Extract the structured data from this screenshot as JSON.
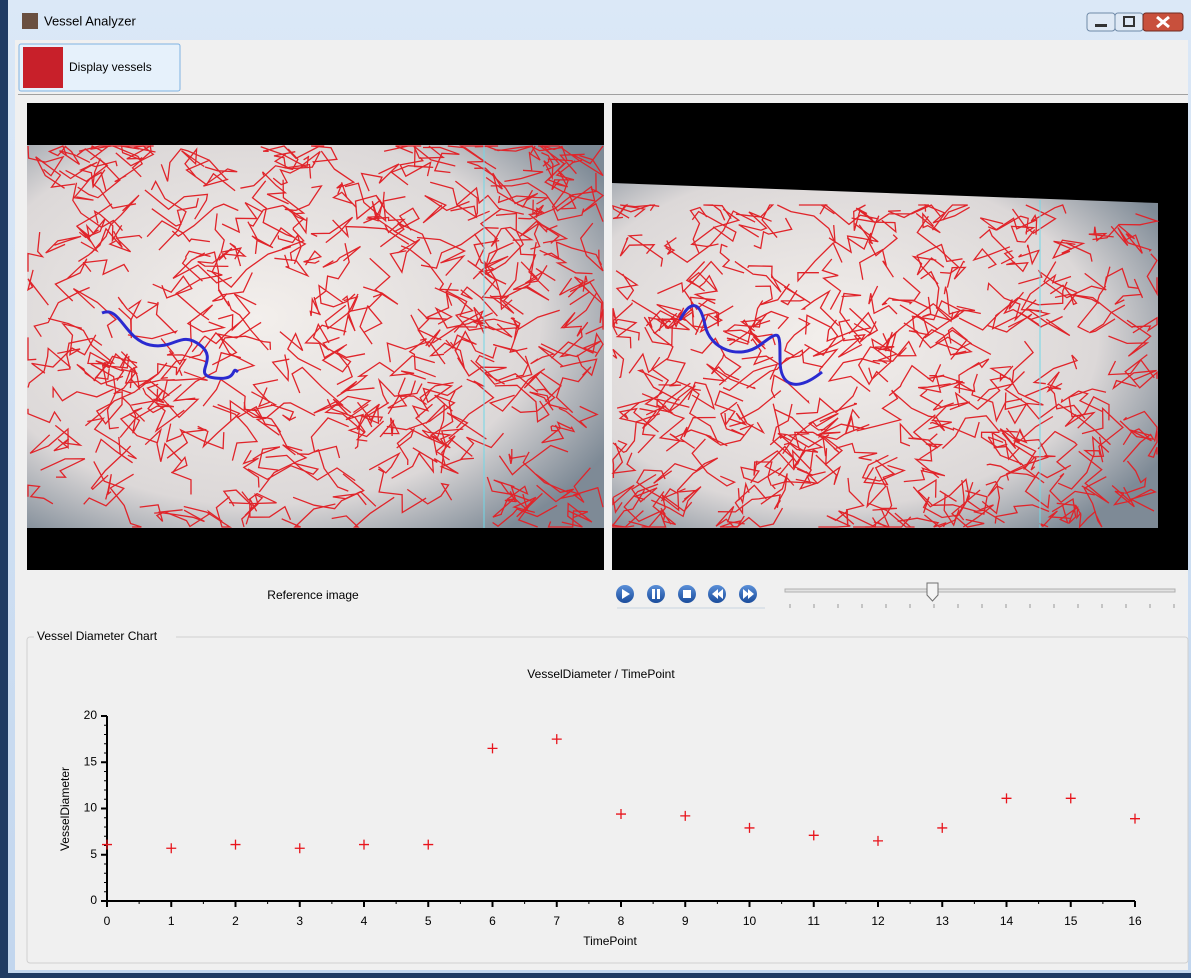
{
  "window": {
    "title": "Vessel Analyzer"
  },
  "toolbar": {
    "button": "Display vessels"
  },
  "viewer": {
    "caption": "Reference image"
  },
  "chart_group": {
    "label": "Vessel Diameter Chart"
  },
  "chart_data": {
    "type": "scatter",
    "title": "VesselDiameter / TimePoint",
    "x_label": "TimePoint",
    "y_label": "VesselDiameter",
    "x": [
      0,
      1,
      2,
      3,
      4,
      5,
      6,
      7,
      8,
      9,
      10,
      11,
      12,
      13,
      14,
      15,
      16
    ],
    "values": [
      6.1,
      5.7,
      6.1,
      5.7,
      6.1,
      6.1,
      16.5,
      17.5,
      9.4,
      9.2,
      7.9,
      7.1,
      6.5,
      7.9,
      11.1,
      11.1,
      8.9
    ],
    "color": "#e8141c",
    "marker": "+",
    "xlim": [
      0,
      16
    ],
    "xticks": [
      0,
      1,
      2,
      3,
      4,
      5,
      6,
      7,
      8,
      9,
      10,
      11,
      12,
      13,
      14,
      15,
      16
    ],
    "ylim": [
      0,
      20
    ],
    "yticks": [
      0,
      5,
      10,
      15,
      20
    ]
  }
}
